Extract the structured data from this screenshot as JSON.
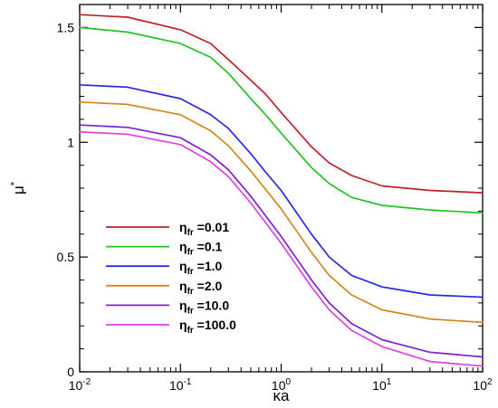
{
  "chart_data": {
    "type": "line",
    "x_scale": "log",
    "xlim": [
      0.01,
      100
    ],
    "ylim": [
      0,
      1.6
    ],
    "x_ticks": [
      {
        "value": 0.01,
        "base": "10",
        "exp": "-2"
      },
      {
        "value": 0.1,
        "base": "10",
        "exp": "-1"
      },
      {
        "value": 1,
        "base": "10",
        "exp": "0"
      },
      {
        "value": 10,
        "base": "10",
        "exp": "1"
      },
      {
        "value": 100,
        "base": "10",
        "exp": "2"
      }
    ],
    "y_ticks": [
      {
        "value": 0,
        "label": "0"
      },
      {
        "value": 0.5,
        "label": "0.5"
      },
      {
        "value": 1,
        "label": "1"
      },
      {
        "value": 1.5,
        "label": "1.5"
      }
    ],
    "xlabel": "κa",
    "ylabel": "μ",
    "ylabel_sup": "*",
    "legend_position": "lower-left",
    "grid": false,
    "x": [
      0.01,
      0.03,
      0.1,
      0.2,
      0.3,
      0.5,
      0.7,
      1,
      2,
      3,
      5,
      10,
      30,
      100
    ],
    "series": [
      {
        "sym": "η",
        "sub": "fr",
        "label": " =0.01",
        "color": "#c0202a",
        "values": [
          1.556,
          1.545,
          1.49,
          1.43,
          1.36,
          1.27,
          1.21,
          1.13,
          0.98,
          0.91,
          0.855,
          0.81,
          0.79,
          0.78
        ]
      },
      {
        "sym": "η",
        "sub": "fr",
        "label": " =0.1",
        "color": "#22c322",
        "values": [
          1.5,
          1.48,
          1.43,
          1.37,
          1.3,
          1.19,
          1.12,
          1.04,
          0.89,
          0.82,
          0.76,
          0.725,
          0.705,
          0.692
        ]
      },
      {
        "sym": "η",
        "sub": "fr",
        "label": " =1.0",
        "color": "#2a2adf",
        "values": [
          1.25,
          1.24,
          1.19,
          1.12,
          1.06,
          0.95,
          0.87,
          0.79,
          0.6,
          0.5,
          0.42,
          0.37,
          0.335,
          0.325
        ]
      },
      {
        "sym": "η",
        "sub": "fr",
        "label": " =2.0",
        "color": "#d4861c",
        "values": [
          1.175,
          1.165,
          1.12,
          1.05,
          0.985,
          0.875,
          0.795,
          0.71,
          0.52,
          0.42,
          0.335,
          0.27,
          0.23,
          0.215
        ]
      },
      {
        "sym": "η",
        "sub": "fr",
        "label": " =10.0",
        "color": "#7a22d6",
        "values": [
          1.075,
          1.065,
          1.02,
          0.945,
          0.88,
          0.765,
          0.68,
          0.59,
          0.4,
          0.3,
          0.21,
          0.14,
          0.085,
          0.065
        ]
      },
      {
        "sym": "η",
        "sub": "fr",
        "label": " =100.0",
        "color": "#e040e0",
        "values": [
          1.045,
          1.035,
          0.99,
          0.915,
          0.85,
          0.735,
          0.65,
          0.56,
          0.37,
          0.27,
          0.18,
          0.11,
          0.045,
          0.025
        ]
      }
    ]
  }
}
